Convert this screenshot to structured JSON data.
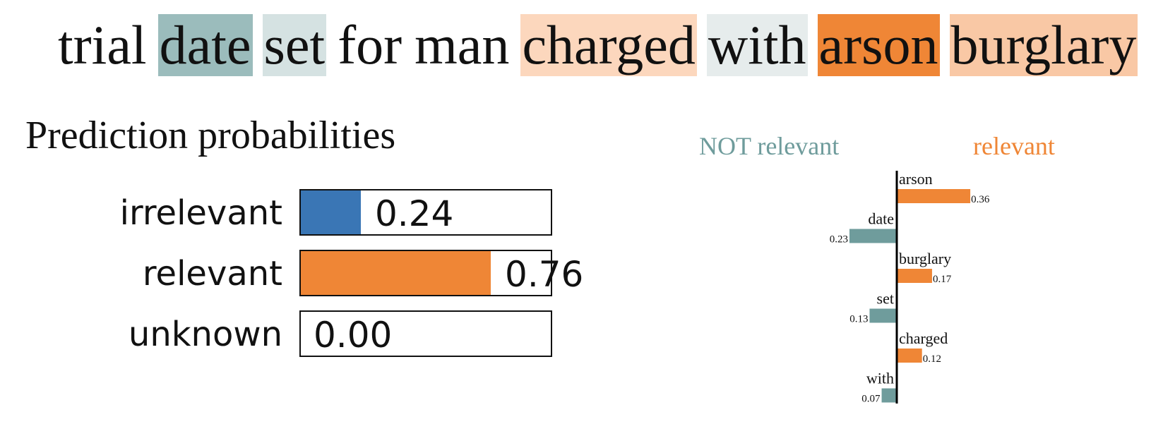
{
  "sentence": {
    "words": [
      {
        "text": "trial",
        "color": "#ffffff"
      },
      {
        "text": "date",
        "color": "#9bbcbc"
      },
      {
        "text": "set",
        "color": "#d5e2e2"
      },
      {
        "text": "for",
        "color": "#ffffff"
      },
      {
        "text": "man",
        "color": "#ffffff"
      },
      {
        "text": "charged",
        "color": "#fcd7bd"
      },
      {
        "text": "with",
        "color": "#e6ecec"
      },
      {
        "text": "arson",
        "color": "#ef8636"
      },
      {
        "text": "burglary",
        "color": "#f9c8a5"
      }
    ]
  },
  "prediction": {
    "title": "Prediction probabilities",
    "rows": [
      {
        "label": "irrelevant",
        "value": 0.24,
        "value_text": "0.24",
        "color": "#3a76b5"
      },
      {
        "label": "relevant",
        "value": 0.76,
        "value_text": "0.76",
        "color": "#ef8636"
      },
      {
        "label": "unknown",
        "value": 0.0,
        "value_text": "0.00",
        "color": "#cccccc"
      }
    ]
  },
  "explanation": {
    "negative_label": "NOT relevant",
    "positive_label": "relevant",
    "negative_color": "#6f9c9c",
    "positive_color": "#ef8636"
  },
  "chart_data": {
    "type": "bar",
    "orientation": "horizontal",
    "categories": [
      "arson",
      "date",
      "burglary",
      "set",
      "charged",
      "with"
    ],
    "values": [
      0.36,
      -0.23,
      0.17,
      -0.13,
      0.12,
      -0.07
    ],
    "value_labels": [
      "0.36",
      "0.23",
      "0.17",
      "0.13",
      "0.12",
      "0.07"
    ],
    "legend": [
      "NOT relevant",
      "relevant"
    ]
  }
}
